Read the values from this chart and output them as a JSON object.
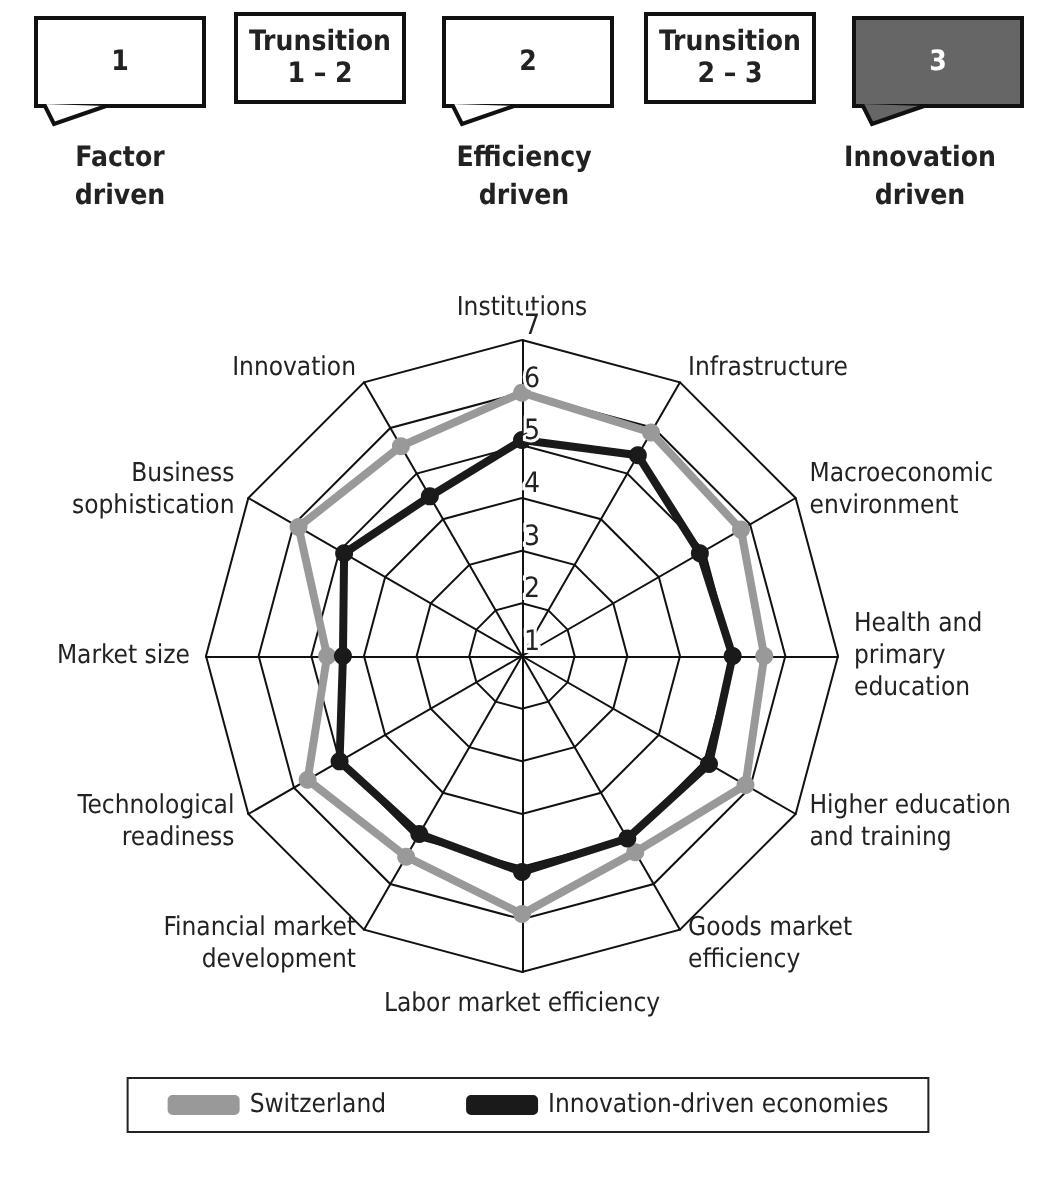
{
  "chart_data": {
    "type": "radar",
    "categories": [
      "Institutions",
      "Infrastructure",
      "Macroeconomic\nenvironment",
      "Health and\nprimary\neducation",
      "Higher education\nand training",
      "Goods market\nefficiency",
      "Labor market efficiency",
      "Financial market\ndevelopment",
      "Technological\nreadiness",
      "Market size",
      "Business\nsophistication",
      "Innovation"
    ],
    "series": [
      {
        "name": "Switzerland",
        "color": "#999999",
        "values": [
          6.0,
          5.9,
          5.8,
          5.6,
          5.9,
          5.3,
          5.9,
          5.4,
          5.7,
          4.7,
          5.9,
          5.6
        ]
      },
      {
        "name": "Innovation-driven economies",
        "color": "#1a1a1a",
        "values": [
          5.1,
          5.4,
          4.9,
          5.0,
          5.1,
          5.0,
          5.1,
          4.9,
          5.0,
          4.4,
          4.9,
          4.5
        ]
      }
    ],
    "ylim": [
      1,
      7
    ],
    "yticks": [
      1,
      2,
      3,
      4,
      5,
      6,
      7
    ],
    "marker": "circle",
    "legend": "bottom",
    "annotations": [
      "1",
      "Trunsition\n1 – 2",
      "2",
      "Trunsition\n2 – 3",
      "3",
      "Factor\ndriven",
      "Efficiency\ndriven",
      "Innovation\ndriven"
    ]
  }
}
